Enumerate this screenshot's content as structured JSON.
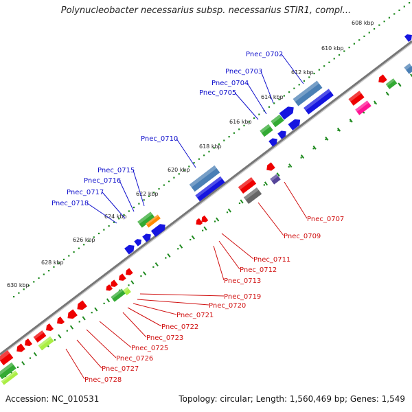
{
  "title": "Polynucleobacter necessarius subsp. necessarius STIR1, compl...",
  "footer": {
    "accession": "Accession: NC_010531",
    "stats": "Topology: circular; Length: 1,560,469 bp; Genes: 1,549"
  },
  "colors": {
    "backbone": "#777777",
    "ruler": "#1f8a1f",
    "label_top": "#1010cc",
    "label_bottom": "#d01010"
  },
  "ruler_labels": [
    "608 kbp",
    "610 kbp",
    "612 kbp",
    "614 kbp",
    "616 kbp",
    "618 kbp",
    "620 kbp",
    "622 kbp",
    "624 kbp",
    "626 kbp",
    "628 kbp",
    "630 kbp"
  ],
  "top_genes": [
    "Pnec_0702",
    "Pnec_0703",
    "Pnec_0704",
    "Pnec_0705",
    "Pnec_0710",
    "Pnec_0715",
    "Pnec_0716",
    "Pnec_0717",
    "Pnec_0718"
  ],
  "bottom_genes": [
    "Pnec_0707",
    "Pnec_0709",
    "Pnec_0711",
    "Pnec_0712",
    "Pnec_0713",
    "Pnec_0719",
    "Pnec_0720",
    "Pnec_0721",
    "Pnec_0722",
    "Pnec_0723",
    "Pnec_0725",
    "Pnec_0726",
    "Pnec_0727",
    "Pnec_0728"
  ]
}
